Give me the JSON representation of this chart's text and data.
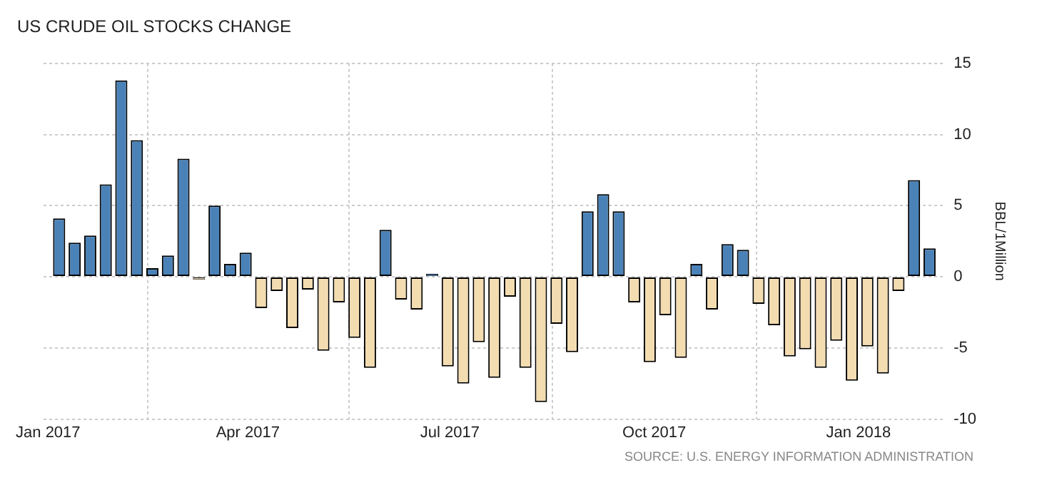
{
  "chart_data": {
    "type": "bar",
    "title": "US CRUDE OIL STOCKS CHANGE",
    "ylabel": "BBL/1Million",
    "annotations": [
      "SOURCE: U.S. ENERGY INFORMATION ADMINISTRATION"
    ],
    "x": [
      "2017-01-06",
      "2017-01-13",
      "2017-01-20",
      "2017-01-27",
      "2017-02-03",
      "2017-02-10",
      "2017-02-17",
      "2017-02-24",
      "2017-03-03",
      "2017-03-10",
      "2017-03-17",
      "2017-03-24",
      "2017-03-31",
      "2017-04-07",
      "2017-04-14",
      "2017-04-21",
      "2017-04-28",
      "2017-05-05",
      "2017-05-12",
      "2017-05-19",
      "2017-05-26",
      "2017-06-02",
      "2017-06-09",
      "2017-06-16",
      "2017-06-23",
      "2017-06-30",
      "2017-07-07",
      "2017-07-14",
      "2017-07-21",
      "2017-07-28",
      "2017-08-04",
      "2017-08-11",
      "2017-08-18",
      "2017-08-25",
      "2017-09-01",
      "2017-09-08",
      "2017-09-15",
      "2017-09-22",
      "2017-09-29",
      "2017-10-06",
      "2017-10-13",
      "2017-10-20",
      "2017-10-27",
      "2017-11-03",
      "2017-11-10",
      "2017-11-17",
      "2017-11-24",
      "2017-12-01",
      "2017-12-08",
      "2017-12-15",
      "2017-12-22",
      "2017-12-29",
      "2018-01-05",
      "2018-01-12",
      "2018-01-19",
      "2018-01-26",
      "2018-02-02"
    ],
    "values": [
      4.1,
      2.4,
      2.9,
      6.5,
      13.8,
      9.6,
      0.6,
      1.5,
      8.3,
      -0.2,
      5.0,
      0.9,
      1.7,
      -2.2,
      -1.0,
      -3.6,
      -0.9,
      -5.2,
      -1.8,
      -4.3,
      -6.4,
      3.3,
      -1.6,
      -2.3,
      0.2,
      -6.3,
      -7.5,
      -4.6,
      -7.1,
      -1.4,
      -6.4,
      -8.8,
      -3.3,
      -5.3,
      4.6,
      5.8,
      4.6,
      -1.8,
      -6.0,
      -2.7,
      -5.7,
      0.9,
      -2.3,
      2.3,
      1.9,
      -1.9,
      -3.4,
      -5.6,
      -5.1,
      -6.4,
      -4.5,
      -7.3,
      -4.9,
      -6.8,
      -1.0,
      6.8,
      2.0
    ],
    "colors": [
      "#4a82b8",
      "#4a82b8",
      "#4a82b8",
      "#4a82b8",
      "#4a82b8",
      "#4a82b8",
      "#4a82b8",
      "#4a82b8",
      "#4a82b8",
      "#f3dcb0",
      "#4a82b8",
      "#4a82b8",
      "#4a82b8",
      "#f3dcb0",
      "#f3dcb0",
      "#f3dcb0",
      "#f3dcb0",
      "#f3dcb0",
      "#f3dcb0",
      "#f3dcb0",
      "#f3dcb0",
      "#4a82b8",
      "#f3dcb0",
      "#f3dcb0",
      "#4a82b8",
      "#f3dcb0",
      "#f3dcb0",
      "#f3dcb0",
      "#f3dcb0",
      "#f3dcb0",
      "#f3dcb0",
      "#f3dcb0",
      "#f3dcb0",
      "#f3dcb0",
      "#4a82b8",
      "#4a82b8",
      "#4a82b8",
      "#f3dcb0",
      "#f3dcb0",
      "#f3dcb0",
      "#f3dcb0",
      "#4a82b8",
      "#f3dcb0",
      "#4a82b8",
      "#4a82b8",
      "#f3dcb0",
      "#f3dcb0",
      "#f3dcb0",
      "#f3dcb0",
      "#f3dcb0",
      "#f3dcb0",
      "#f3dcb0",
      "#f3dcb0",
      "#f3dcb0",
      "#f3dcb0",
      "#4a82b8",
      "#4a82b8"
    ],
    "xlim": [
      "2016-12-30",
      "2018-02-09"
    ],
    "xticks": [
      {
        "value": "2017-01-01",
        "label": "Jan 2017"
      },
      {
        "value": "2017-04-01",
        "label": "Apr 2017"
      },
      {
        "value": "2017-07-01",
        "label": "Jul 2017"
      },
      {
        "value": "2017-10-01",
        "label": "Oct 2017"
      },
      {
        "value": "2018-01-01",
        "label": "Jan 2018"
      }
    ],
    "ylim": [
      -10,
      15
    ],
    "yticks": [
      -10,
      -5,
      0,
      5,
      10,
      15
    ],
    "grid": true,
    "legend": false
  }
}
